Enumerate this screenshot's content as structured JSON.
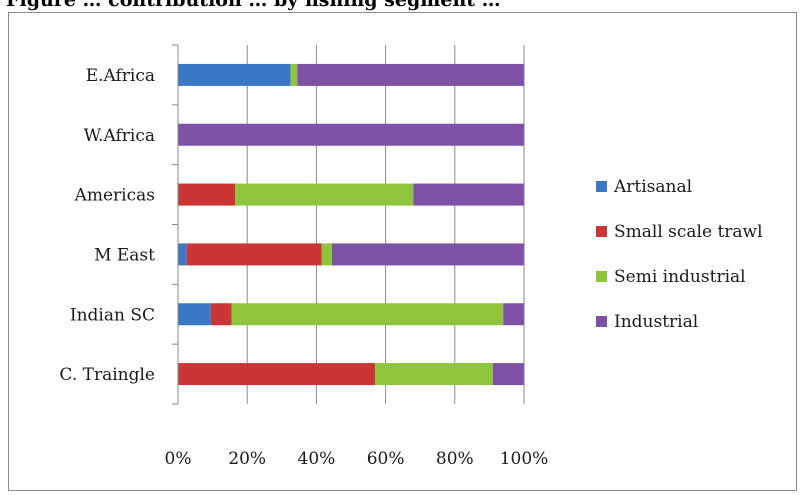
{
  "title": "Figure … contribution … by fishing segment …",
  "chart_data": {
    "type": "bar",
    "orientation": "horizontal",
    "stacked": "percent",
    "categories": [
      "E.Africa",
      "W.Africa",
      "Americas",
      "M East",
      "Indian SC",
      "C. Traingle"
    ],
    "series": [
      {
        "name": "Artisanal",
        "color": "#3a77c6",
        "values": [
          32.5,
          0,
          0,
          2.5,
          9.5,
          0
        ]
      },
      {
        "name": "Small scale trawl",
        "color": "#cc3535",
        "values": [
          0,
          0,
          16.5,
          39,
          6,
          57
        ]
      },
      {
        "name": "Semi industrial",
        "color": "#8fc53d",
        "values": [
          2,
          0,
          51.5,
          3,
          78.5,
          34
        ]
      },
      {
        "name": "Industrial",
        "color": "#7d52a6",
        "values": [
          65.5,
          100,
          32,
          55.5,
          6,
          9
        ]
      }
    ],
    "x_ticks": [
      "0%",
      "20%",
      "40%",
      "60%",
      "80%",
      "100%"
    ],
    "xlim": [
      0,
      100
    ],
    "grid": true,
    "legend_position": "right"
  }
}
